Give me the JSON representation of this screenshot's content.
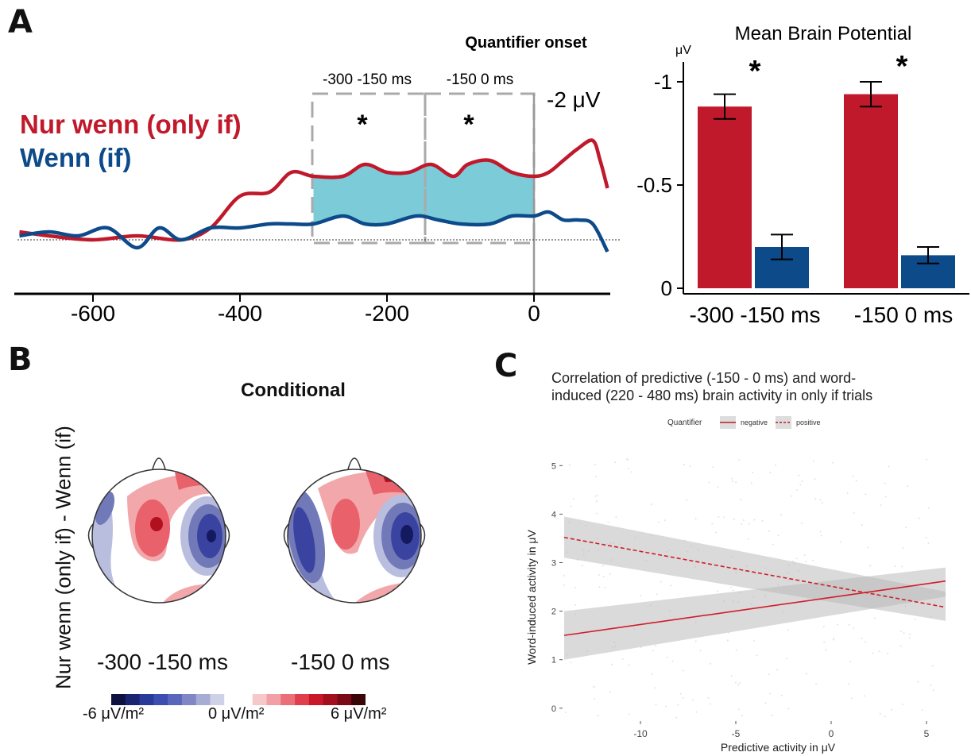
{
  "panels": {
    "a": "A",
    "b": "B",
    "c": "C"
  },
  "erp": {
    "title": "Quantifier onset",
    "window1_label": "-300 -150 ms",
    "window2_label": "-150  0 ms",
    "scale_label": "-2 μV",
    "sig_marks": [
      "*",
      "*"
    ],
    "legend": [
      {
        "name": "Nur wenn (only if)",
        "color": "#c0192b"
      },
      {
        "name": "Wenn (if)",
        "color": "#0d4a8a"
      }
    ],
    "x_ticks": [
      "-600",
      "-400",
      "-200",
      "0"
    ],
    "shade_color": "#7ccbd9"
  },
  "bar": {
    "title": "Mean Brain Potential",
    "unit": "μV",
    "y_ticks": [
      "-1",
      "-0.5",
      "0"
    ],
    "categories": [
      "-300 -150 ms",
      "-150  0 ms"
    ],
    "sig_marks": [
      "*",
      "*"
    ]
  },
  "topo": {
    "title": "Conditional",
    "ylabel": "Nur wenn (only if) - Wenn (if)",
    "labels": [
      "-300 -150 ms",
      "-150  0 ms"
    ],
    "cbar_left": "-6 μV/m²",
    "cbar_mid": "0 μV/m²",
    "cbar_right": "6 μV/m²"
  },
  "corr": {
    "title_line1": "Correlation of predictive (-150 - 0 ms) and word-",
    "title_line2": "induced (220 - 480 ms) brain activity in only if trials",
    "legend_title": "Quantifier",
    "legend_items": [
      "negative",
      "positive"
    ],
    "xlabel": "Predictive activity in μV",
    "ylabel": "Word-induced activity in μV",
    "x_ticks": [
      "-10",
      "-5",
      "0",
      "5"
    ],
    "y_ticks": [
      "0",
      "1",
      "2",
      "3",
      "4",
      "5"
    ]
  },
  "chart_data": [
    {
      "type": "line",
      "x_range": [
        -700,
        100
      ],
      "x_unit": "ms",
      "y_unit": "μV",
      "negative_up": true,
      "series": [
        {
          "name": "Nur wenn (only if)",
          "color": "#c0192b",
          "x": [
            -700,
            -660,
            -600,
            -540,
            -480,
            -440,
            -400,
            -360,
            -330,
            -300,
            -260,
            -230,
            -200,
            -170,
            -140,
            -110,
            -90,
            -60,
            -30,
            0,
            20,
            40,
            60,
            80,
            90,
            100
          ],
          "y": [
            -0.1,
            -0.05,
            -0.0,
            -0.05,
            0.0,
            -0.15,
            -0.55,
            -0.6,
            -0.85,
            -0.8,
            -0.8,
            -0.95,
            -0.85,
            -0.85,
            -0.95,
            -0.8,
            -0.95,
            -1.0,
            -0.85,
            -0.8,
            -0.85,
            -1.0,
            -1.15,
            -1.25,
            -1.0,
            -0.65
          ]
        },
        {
          "name": "Wenn (if)",
          "color": "#0d4a8a",
          "x": [
            -700,
            -660,
            -620,
            -580,
            -540,
            -510,
            -480,
            -440,
            -400,
            -360,
            -330,
            -300,
            -260,
            -230,
            -200,
            -160,
            -130,
            -100,
            -60,
            -30,
            0,
            20,
            40,
            60,
            80,
            100
          ],
          "y": [
            -0.05,
            -0.1,
            -0.05,
            -0.15,
            0.1,
            -0.15,
            0.0,
            -0.15,
            -0.15,
            -0.2,
            -0.2,
            -0.2,
            -0.3,
            -0.2,
            -0.2,
            -0.3,
            -0.25,
            -0.2,
            -0.2,
            -0.3,
            -0.3,
            -0.35,
            -0.25,
            -0.25,
            -0.2,
            0.15
          ]
        }
      ]
    },
    {
      "type": "bar",
      "title": "Mean Brain Potential",
      "ylabel": "μV",
      "ylim": [
        0,
        -1
      ],
      "categories": [
        "-300 -150 ms",
        "-150  0 ms"
      ],
      "series": [
        {
          "color": "#c0192b",
          "values": [
            -0.88,
            -0.94
          ],
          "errors": [
            0.06,
            0.06
          ]
        },
        {
          "color": "#0d4a8a",
          "values": [
            -0.2,
            -0.16
          ],
          "errors": [
            0.06,
            0.04
          ]
        }
      ]
    },
    {
      "type": "line",
      "title": "Correlation of predictive (-150 - 0 ms) and word-induced (220 - 480 ms) brain activity in only if trials",
      "xlabel": "Predictive activity in μV",
      "ylabel": "Word-induced activity in μV",
      "xlim": [
        -14,
        6
      ],
      "ylim": [
        -0.2,
        5.3
      ],
      "series": [
        {
          "name": "negative",
          "x": [
            -14,
            6
          ],
          "y": [
            1.5,
            2.62
          ],
          "band": [
            [
              1.0,
              2.0
            ],
            [
              2.3,
              2.9
            ]
          ],
          "style": "solid"
        },
        {
          "name": "positive",
          "x": [
            -14,
            6
          ],
          "y": [
            3.52,
            2.08
          ],
          "band": [
            [
              3.1,
              3.95
            ],
            [
              1.8,
              2.4
            ]
          ],
          "style": "dashed"
        }
      ]
    }
  ]
}
